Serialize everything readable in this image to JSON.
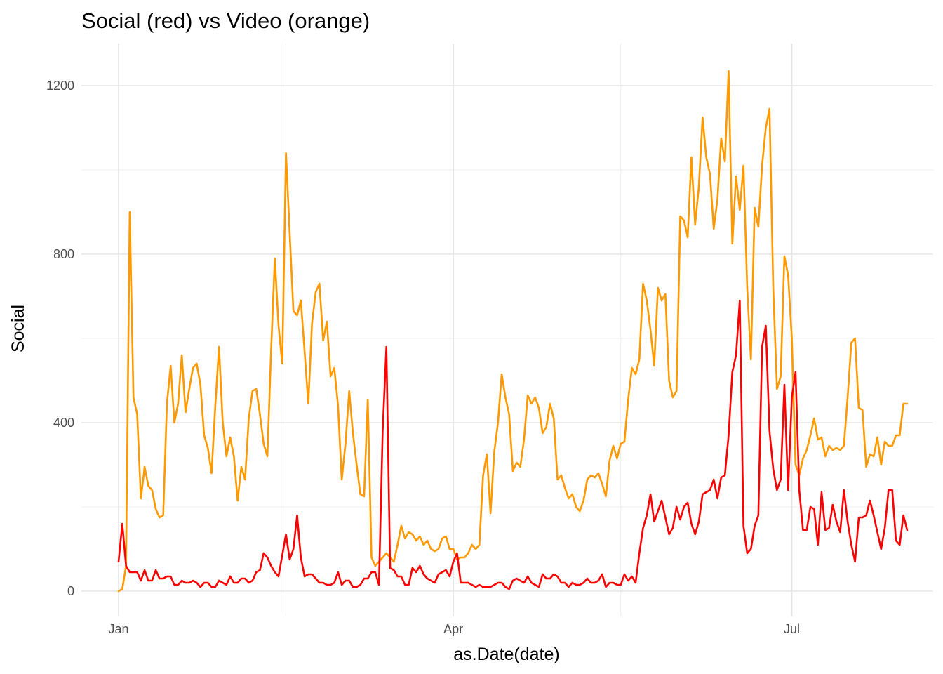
{
  "chart_data": {
    "type": "line",
    "title": "Social (red) vs Video (orange)",
    "xlabel": "as.Date(date)",
    "ylabel": "Social",
    "x_ticks": [
      {
        "date": "2019-01-01",
        "label": "Jan"
      },
      {
        "date": "2019-04-01",
        "label": "Apr"
      },
      {
        "date": "2019-07-01",
        "label": "Jul"
      }
    ],
    "x_minor_dates": [
      "2019-02-15",
      "2019-05-16"
    ],
    "y_ticks": [
      0,
      400,
      800,
      1200
    ],
    "y_minor": [
      200,
      600,
      1000
    ],
    "xlim": [
      "2018-12-22",
      "2019-08-08"
    ],
    "ylim": [
      -60,
      1300
    ],
    "grid": true,
    "legend": "none",
    "x_start_date": "2019-01-01",
    "series": [
      {
        "color": "#ff0000",
        "values": [
          70,
          160,
          60,
          45,
          45,
          45,
          25,
          50,
          25,
          25,
          50,
          30,
          30,
          35,
          35,
          15,
          15,
          25,
          20,
          20,
          25,
          20,
          10,
          20,
          20,
          10,
          10,
          25,
          20,
          15,
          35,
          20,
          20,
          30,
          30,
          20,
          25,
          45,
          50,
          90,
          80,
          60,
          45,
          35,
          85,
          135,
          75,
          100,
          180,
          80,
          35,
          40,
          40,
          30,
          20,
          20,
          15,
          15,
          20,
          45,
          15,
          25,
          25,
          10,
          10,
          15,
          30,
          30,
          45,
          45,
          15,
          380,
          580,
          55,
          50,
          35,
          35,
          15,
          15,
          55,
          45,
          60,
          40,
          30,
          25,
          20,
          40,
          45,
          50,
          35,
          70,
          90,
          20,
          20,
          20,
          15,
          10,
          15,
          10,
          10,
          10,
          15,
          20,
          20,
          10,
          5,
          25,
          30,
          25,
          20,
          35,
          20,
          15,
          10,
          40,
          30,
          30,
          40,
          35,
          20,
          20,
          10,
          20,
          15,
          15,
          20,
          30,
          20,
          20,
          25,
          40,
          10,
          20,
          20,
          15,
          15,
          40,
          25,
          35,
          20,
          90,
          150,
          180,
          230,
          165,
          190,
          215,
          175,
          135,
          150,
          200,
          170,
          200,
          210,
          160,
          135,
          165,
          230,
          235,
          240,
          265,
          220,
          270,
          275,
          370,
          520,
          560,
          690,
          155,
          90,
          100,
          155,
          180,
          580,
          630,
          380,
          290,
          240,
          265,
          490,
          240,
          460,
          520,
          240,
          145,
          145,
          200,
          195,
          110,
          235,
          145,
          150,
          205,
          165,
          140,
          240,
          165,
          110,
          70,
          175,
          175,
          180,
          215,
          180,
          140,
          100,
          150,
          240,
          240,
          120,
          110,
          180,
          145
        ]
      },
      {
        "color": "#ff9900",
        "values": [
          0,
          5,
          60,
          900,
          460,
          420,
          220,
          295,
          250,
          240,
          195,
          175,
          180,
          445,
          535,
          400,
          445,
          560,
          425,
          480,
          530,
          540,
          490,
          370,
          340,
          280,
          440,
          580,
          400,
          320,
          365,
          320,
          215,
          295,
          265,
          410,
          475,
          480,
          420,
          350,
          320,
          570,
          790,
          630,
          540,
          1040,
          850,
          665,
          655,
          690,
          570,
          445,
          635,
          710,
          730,
          595,
          640,
          510,
          530,
          440,
          265,
          350,
          475,
          375,
          300,
          230,
          225,
          455,
          80,
          60,
          70,
          80,
          90,
          80,
          70,
          110,
          155,
          125,
          140,
          135,
          120,
          130,
          110,
          120,
          100,
          95,
          100,
          125,
          130,
          100,
          100,
          75,
          80,
          80,
          90,
          110,
          100,
          110,
          275,
          325,
          185,
          330,
          400,
          515,
          460,
          420,
          285,
          305,
          295,
          360,
          465,
          445,
          460,
          435,
          375,
          390,
          445,
          410,
          265,
          275,
          245,
          220,
          230,
          200,
          190,
          215,
          265,
          275,
          270,
          280,
          255,
          225,
          310,
          345,
          315,
          350,
          355,
          455,
          530,
          515,
          550,
          730,
          690,
          620,
          535,
          720,
          690,
          705,
          500,
          460,
          475,
          890,
          880,
          840,
          1030,
          870,
          960,
          1125,
          1030,
          990,
          860,
          930,
          1075,
          1020,
          1235,
          825,
          985,
          905,
          1010,
          720,
          550,
          910,
          865,
          1010,
          1100,
          1145,
          720,
          480,
          510,
          795,
          750,
          600,
          300,
          275,
          315,
          335,
          370,
          410,
          360,
          365,
          320,
          345,
          335,
          340,
          335,
          345,
          460,
          590,
          600,
          435,
          430,
          295,
          325,
          320,
          365,
          300,
          355,
          345,
          345,
          370,
          370,
          445,
          445
        ]
      }
    ]
  }
}
